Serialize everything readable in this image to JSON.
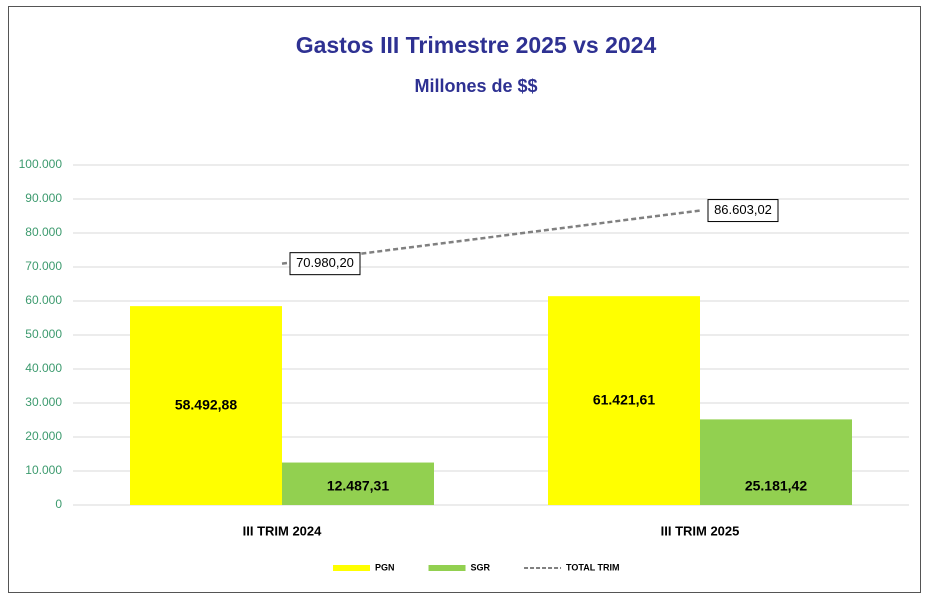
{
  "chart_data": {
    "type": "bar",
    "title": "Gastos III Trimestre 2025 vs 2024",
    "subtitle": "Millones de $$",
    "categories": [
      "III TRIM 2024",
      "III TRIM 2025"
    ],
    "series": [
      {
        "name": "PGN",
        "color": "#ffff00",
        "values": [
          58492.88,
          61421.61
        ],
        "value_labels": [
          "58.492,88",
          "61.421,61"
        ]
      },
      {
        "name": "SGR",
        "color": "#92d050",
        "values": [
          12487.31,
          25181.42
        ],
        "value_labels": [
          "12.487,31",
          "25.181,42"
        ]
      },
      {
        "name": "TOTAL TRIM",
        "type": "line",
        "color": "#808080",
        "values": [
          70980.2,
          86603.02
        ],
        "value_labels": [
          "70.980,20",
          "86.603,02"
        ]
      }
    ],
    "ylim": [
      0,
      100000
    ],
    "yticks": [
      0,
      {
        "value": 10000,
        "label": "10.000"
      },
      {
        "value": 20000,
        "label": "20.000"
      },
      {
        "value": 30000,
        "label": "30.000"
      },
      {
        "value": 40000,
        "label": "40.000"
      },
      {
        "value": 50000,
        "label": "50.000"
      },
      {
        "value": 60000,
        "label": "60.000"
      },
      {
        "value": 70000,
        "label": "70.000"
      },
      {
        "value": 80000,
        "label": "80.000"
      },
      {
        "value": 90000,
        "label": "90.000"
      },
      {
        "value": 100000,
        "label": "100.000"
      }
    ],
    "grid": true,
    "legend": "bottom"
  }
}
